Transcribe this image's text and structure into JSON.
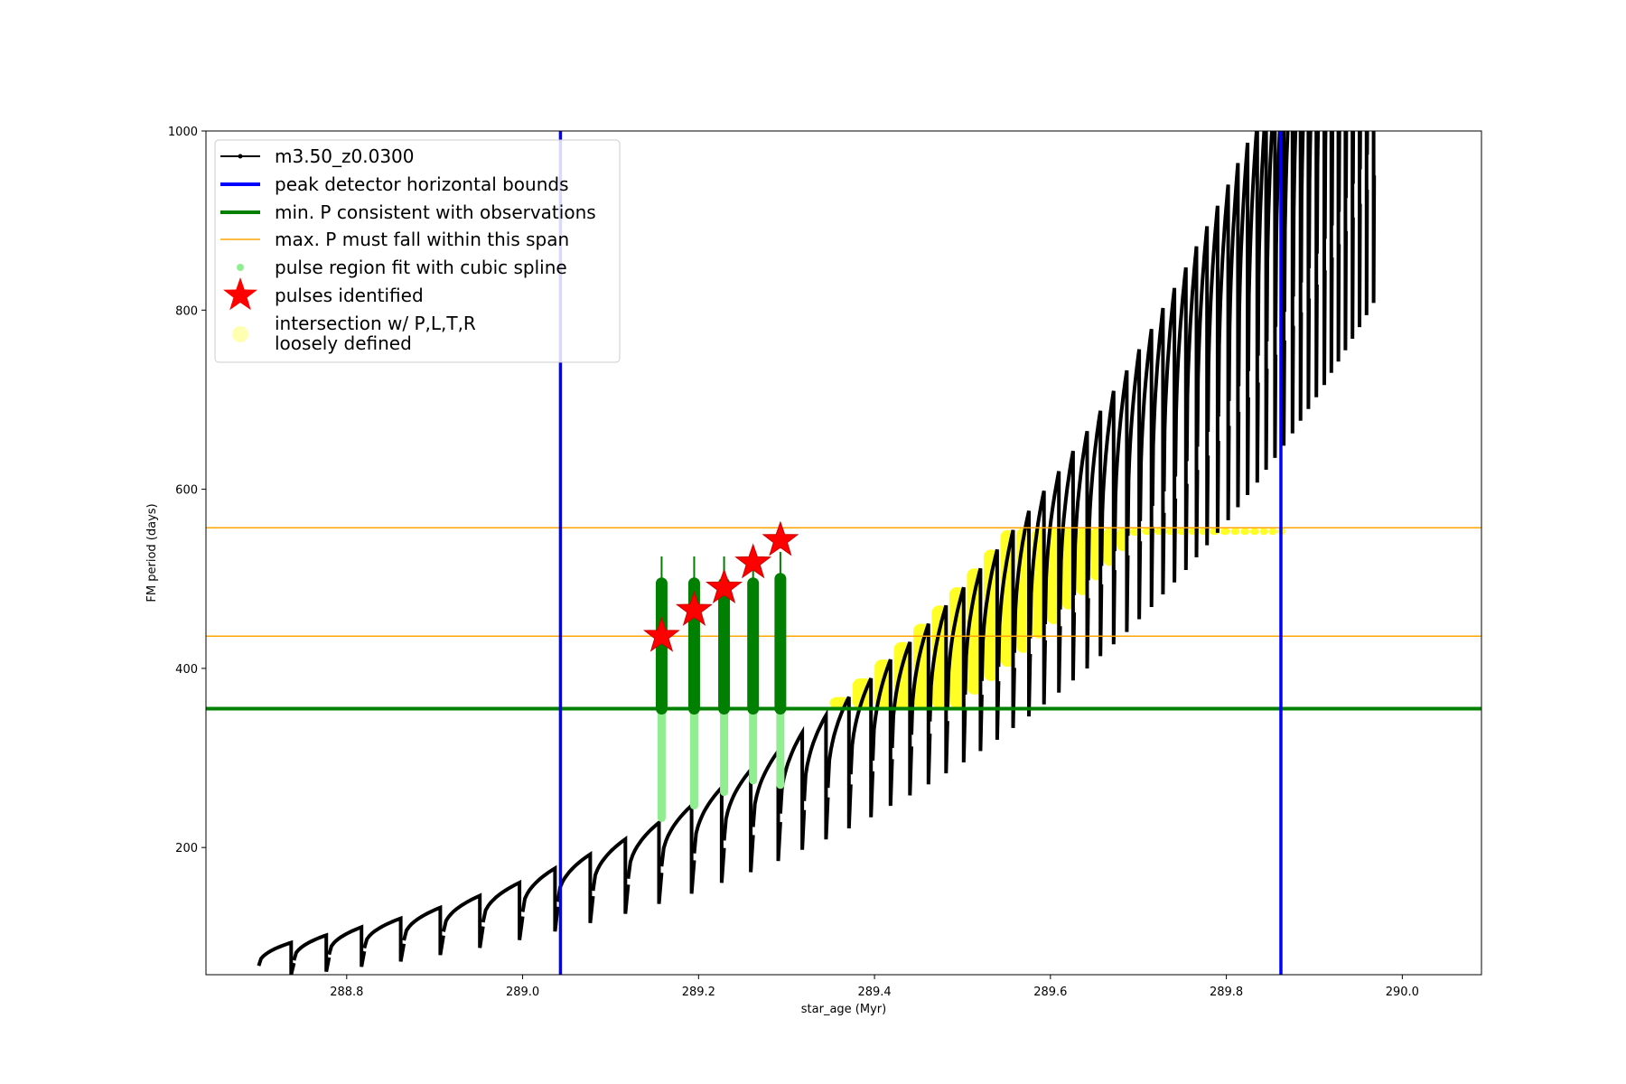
{
  "chart_data": {
    "type": "line",
    "title": "",
    "xlabel": "star_age (Myr)",
    "ylabel": "FM period (days)",
    "xlim": [
      288.64,
      290.09
    ],
    "ylim": [
      58,
      1000
    ],
    "x_ticks": [
      "288.8",
      "289.0",
      "289.2",
      "289.4",
      "289.6",
      "289.8",
      "290.0"
    ],
    "y_ticks": [
      "200",
      "400",
      "600",
      "800",
      "1000"
    ],
    "grid": false,
    "legend_position": "upper-left",
    "legend": [
      {
        "label": "m3.50_z0.0300",
        "kind": "line-marker",
        "color": "#000000"
      },
      {
        "label": "peak detector horizontal bounds",
        "kind": "line",
        "color": "#0000ff"
      },
      {
        "label": "min. P consistent with observations",
        "kind": "line",
        "color": "#008000"
      },
      {
        "label": "max. P must fall within this span",
        "kind": "line",
        "color": "#ffa500"
      },
      {
        "label": "pulse region fit with cubic spline",
        "kind": "dot",
        "color": "#90ee90"
      },
      {
        "label": "pulses identified",
        "kind": "star",
        "color": "#ff0000"
      },
      {
        "label": "intersection w/ P,L,T,R\nloosely defined",
        "kind": "dot",
        "color": "#ffff66"
      }
    ],
    "reference_lines": {
      "vertical_blue": [
        289.043,
        289.862
      ],
      "horizontal_green": [
        355
      ],
      "horizontal_orange": [
        436,
        557
      ]
    },
    "model_track": {
      "name": "m3.50_z0.0300",
      "cycles_start": [
        288.7,
        288.74,
        288.78,
        288.82,
        288.865,
        288.91,
        288.955,
        289.0,
        289.04,
        289.08,
        289.12,
        289.158,
        289.195,
        289.229,
        289.262,
        289.293,
        289.32,
        289.347,
        289.373,
        289.398,
        289.42,
        289.442,
        289.463,
        289.483,
        289.503,
        289.522,
        289.541,
        289.559,
        289.577,
        289.594,
        289.611,
        289.627,
        289.643,
        289.658,
        289.673,
        289.688,
        289.702,
        289.716,
        289.729,
        289.742,
        289.755,
        289.767,
        289.779,
        289.791,
        289.803,
        289.814,
        289.825,
        289.836,
        289.846,
        289.856,
        289.866,
        289.876,
        289.885,
        289.894,
        289.903,
        289.912,
        289.92,
        289.928,
        289.936,
        289.944,
        289.952,
        289.96,
        289.968
      ],
      "base_period_start": 68,
      "base_period_end": 990
    },
    "pulses_identified": [
      {
        "x": 289.158,
        "y": 436
      },
      {
        "x": 289.195,
        "y": 465
      },
      {
        "x": 289.229,
        "y": 490
      },
      {
        "x": 289.262,
        "y": 518
      },
      {
        "x": 289.293,
        "y": 543
      }
    ],
    "spline_regions": [
      {
        "x": 289.158,
        "ymin": 233,
        "ymax": 525
      },
      {
        "x": 289.195,
        "ymin": 247,
        "ymax": 525
      },
      {
        "x": 289.229,
        "ymin": 262,
        "ymax": 525
      },
      {
        "x": 289.262,
        "ymin": 275,
        "ymax": 525
      },
      {
        "x": 289.293,
        "ymin": 270,
        "ymax": 530
      }
    ],
    "intersection_region": {
      "x_range": [
        289.04,
        289.862
      ],
      "y_range": [
        355,
        557
      ]
    }
  }
}
